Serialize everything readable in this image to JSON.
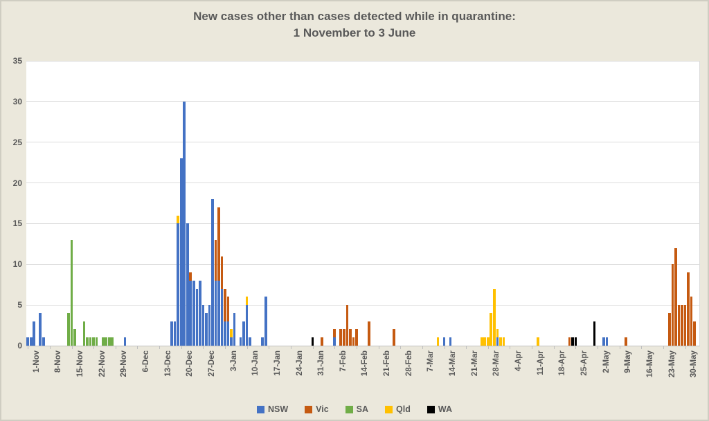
{
  "title": {
    "line1": "New cases other than cases detected while in quarantine:",
    "line2": "1 November to 3 June"
  },
  "colors": {
    "NSW": "#4472c4",
    "Vic": "#c55a11",
    "SA": "#70ad47",
    "Qld": "#ffc000",
    "WA": "#000000",
    "background": "#ebe8dc",
    "plot_background": "#ffffff",
    "gridline": "#dcdcdc",
    "axis_text": "#595959"
  },
  "chart_data": {
    "type": "bar",
    "stacked": true,
    "title": "New cases other than cases detected while in quarantine: 1 November to 3 June",
    "xlabel": "",
    "ylabel": "",
    "ylim": [
      0,
      35
    ],
    "yticks": [
      0,
      5,
      10,
      15,
      20,
      25,
      30,
      35
    ],
    "grid": true,
    "legend_position": "bottom",
    "series_names": [
      "NSW",
      "Vic",
      "SA",
      "Qld",
      "WA"
    ],
    "x_axis": {
      "start": "1-Nov",
      "end": "3-Jun",
      "total_days": 215,
      "tick_interval_days": 7
    },
    "xticks": [
      {
        "label": "1-Nov",
        "day": 0
      },
      {
        "label": "8-Nov",
        "day": 7
      },
      {
        "label": "15-Nov",
        "day": 14
      },
      {
        "label": "22-Nov",
        "day": 21
      },
      {
        "label": "29-Nov",
        "day": 28
      },
      {
        "label": "6-Dec",
        "day": 35
      },
      {
        "label": "13-Dec",
        "day": 42
      },
      {
        "label": "20-Dec",
        "day": 49
      },
      {
        "label": "27-Dec",
        "day": 56
      },
      {
        "label": "3-Jan",
        "day": 63
      },
      {
        "label": "10-Jan",
        "day": 70
      },
      {
        "label": "17-Jan",
        "day": 77
      },
      {
        "label": "24-Jan",
        "day": 84
      },
      {
        "label": "31-Jan",
        "day": 91
      },
      {
        "label": "7-Feb",
        "day": 98
      },
      {
        "label": "14-Feb",
        "day": 105
      },
      {
        "label": "21-Feb",
        "day": 112
      },
      {
        "label": "28-Feb",
        "day": 119
      },
      {
        "label": "7-Mar",
        "day": 126
      },
      {
        "label": "14-Mar",
        "day": 133
      },
      {
        "label": "21-Mar",
        "day": 140
      },
      {
        "label": "28-Mar",
        "day": 147
      },
      {
        "label": "4-Apr",
        "day": 154
      },
      {
        "label": "11-Apr",
        "day": 161
      },
      {
        "label": "18-Apr",
        "day": 168
      },
      {
        "label": "25-Apr",
        "day": 175
      },
      {
        "label": "2-May",
        "day": 182
      },
      {
        "label": "9-May",
        "day": 189
      },
      {
        "label": "16-May",
        "day": 196
      },
      {
        "label": "23-May",
        "day": 203
      },
      {
        "label": "30-May",
        "day": 210
      }
    ],
    "bars": [
      {
        "day": 0,
        "date": "1-Nov",
        "values": {
          "NSW": 1
        }
      },
      {
        "day": 1,
        "date": "2-Nov",
        "values": {
          "NSW": 1
        }
      },
      {
        "day": 2,
        "date": "3-Nov",
        "values": {
          "NSW": 3
        }
      },
      {
        "day": 4,
        "date": "5-Nov",
        "values": {
          "NSW": 4
        }
      },
      {
        "day": 5,
        "date": "6-Nov",
        "values": {
          "NSW": 1
        }
      },
      {
        "day": 13,
        "date": "14-Nov",
        "values": {
          "SA": 4
        }
      },
      {
        "day": 14,
        "date": "15-Nov",
        "values": {
          "SA": 13
        }
      },
      {
        "day": 15,
        "date": "16-Nov",
        "values": {
          "SA": 2
        }
      },
      {
        "day": 18,
        "date": "19-Nov",
        "values": {
          "SA": 3
        }
      },
      {
        "day": 19,
        "date": "20-Nov",
        "values": {
          "SA": 1
        }
      },
      {
        "day": 20,
        "date": "21-Nov",
        "values": {
          "SA": 1
        }
      },
      {
        "day": 21,
        "date": "22-Nov",
        "values": {
          "SA": 1
        }
      },
      {
        "day": 22,
        "date": "23-Nov",
        "values": {
          "SA": 1
        }
      },
      {
        "day": 24,
        "date": "25-Nov",
        "values": {
          "SA": 1
        }
      },
      {
        "day": 25,
        "date": "26-Nov",
        "values": {
          "SA": 1
        }
      },
      {
        "day": 26,
        "date": "27-Nov",
        "values": {
          "SA": 1
        }
      },
      {
        "day": 27,
        "date": "28-Nov",
        "values": {
          "SA": 1
        }
      },
      {
        "day": 31,
        "date": "2-Dec",
        "values": {
          "NSW": 1
        }
      },
      {
        "day": 46,
        "date": "17-Dec",
        "values": {
          "NSW": 3
        }
      },
      {
        "day": 47,
        "date": "18-Dec",
        "values": {
          "NSW": 3
        }
      },
      {
        "day": 48,
        "date": "19-Dec",
        "values": {
          "NSW": 15,
          "Qld": 1
        }
      },
      {
        "day": 49,
        "date": "20-Dec",
        "values": {
          "NSW": 23
        }
      },
      {
        "day": 50,
        "date": "21-Dec",
        "values": {
          "NSW": 30
        }
      },
      {
        "day": 51,
        "date": "22-Dec",
        "values": {
          "NSW": 15
        }
      },
      {
        "day": 52,
        "date": "23-Dec",
        "values": {
          "NSW": 8,
          "Vic": 1
        }
      },
      {
        "day": 53,
        "date": "24-Dec",
        "values": {
          "NSW": 8
        }
      },
      {
        "day": 54,
        "date": "25-Dec",
        "values": {
          "NSW": 7
        }
      },
      {
        "day": 55,
        "date": "26-Dec",
        "values": {
          "NSW": 8
        }
      },
      {
        "day": 56,
        "date": "27-Dec",
        "values": {
          "NSW": 5
        }
      },
      {
        "day": 57,
        "date": "28-Dec",
        "values": {
          "NSW": 4
        }
      },
      {
        "day": 58,
        "date": "29-Dec",
        "values": {
          "NSW": 5
        }
      },
      {
        "day": 59,
        "date": "30-Dec",
        "values": {
          "NSW": 18
        }
      },
      {
        "day": 60,
        "date": "31-Dec",
        "values": {
          "NSW": 8,
          "Vic": 5
        }
      },
      {
        "day": 61,
        "date": "1-Jan",
        "values": {
          "NSW": 8,
          "Vic": 9
        }
      },
      {
        "day": 62,
        "date": "2-Jan",
        "values": {
          "NSW": 7,
          "Vic": 4
        }
      },
      {
        "day": 63,
        "date": "3-Jan",
        "values": {
          "NSW": 3,
          "Vic": 4
        }
      },
      {
        "day": 64,
        "date": "4-Jan",
        "values": {
          "NSW": 3,
          "Vic": 3
        }
      },
      {
        "day": 65,
        "date": "5-Jan",
        "values": {
          "NSW": 1,
          "Qld": 1
        }
      },
      {
        "day": 66,
        "date": "6-Jan",
        "values": {
          "NSW": 4
        }
      },
      {
        "day": 68,
        "date": "8-Jan",
        "values": {
          "NSW": 1
        }
      },
      {
        "day": 69,
        "date": "9-Jan",
        "values": {
          "NSW": 3
        }
      },
      {
        "day": 70,
        "date": "10-Jan",
        "values": {
          "NSW": 5,
          "Qld": 1
        }
      },
      {
        "day": 71,
        "date": "11-Jan",
        "values": {
          "NSW": 1
        }
      },
      {
        "day": 75,
        "date": "15-Jan",
        "values": {
          "NSW": 1
        }
      },
      {
        "day": 76,
        "date": "16-Jan",
        "values": {
          "NSW": 6
        }
      },
      {
        "day": 91,
        "date": "31-Jan",
        "values": {
          "WA": 1
        }
      },
      {
        "day": 94,
        "date": "3-Feb",
        "values": {
          "Vic": 1
        }
      },
      {
        "day": 98,
        "date": "7-Feb",
        "values": {
          "NSW": 1,
          "Vic": 1
        }
      },
      {
        "day": 100,
        "date": "9-Feb",
        "values": {
          "Vic": 2
        }
      },
      {
        "day": 101,
        "date": "10-Feb",
        "values": {
          "Vic": 2
        }
      },
      {
        "day": 102,
        "date": "11-Feb",
        "values": {
          "Vic": 5
        }
      },
      {
        "day": 103,
        "date": "12-Feb",
        "values": {
          "Vic": 2
        }
      },
      {
        "day": 104,
        "date": "13-Feb",
        "values": {
          "Vic": 1
        }
      },
      {
        "day": 105,
        "date": "14-Feb",
        "values": {
          "Vic": 2
        }
      },
      {
        "day": 109,
        "date": "18-Feb",
        "values": {
          "Vic": 3
        }
      },
      {
        "day": 117,
        "date": "26-Feb",
        "values": {
          "Vic": 2
        }
      },
      {
        "day": 131,
        "date": "12-Mar",
        "values": {
          "Qld": 1
        }
      },
      {
        "day": 133,
        "date": "14-Mar",
        "values": {
          "NSW": 1
        }
      },
      {
        "day": 135,
        "date": "16-Mar",
        "values": {
          "NSW": 1
        }
      },
      {
        "day": 145,
        "date": "26-Mar",
        "values": {
          "Qld": 1
        }
      },
      {
        "day": 146,
        "date": "27-Mar",
        "values": {
          "Qld": 1
        }
      },
      {
        "day": 147,
        "date": "28-Mar",
        "values": {
          "Qld": 1
        }
      },
      {
        "day": 148,
        "date": "29-Mar",
        "values": {
          "Qld": 4
        }
      },
      {
        "day": 149,
        "date": "30-Mar",
        "values": {
          "Qld": 7
        }
      },
      {
        "day": 150,
        "date": "31-Mar",
        "values": {
          "NSW": 1,
          "Qld": 1
        }
      },
      {
        "day": 151,
        "date": "1-Apr",
        "values": {
          "Qld": 1
        }
      },
      {
        "day": 152,
        "date": "2-Apr",
        "values": {
          "Qld": 1
        }
      },
      {
        "day": 163,
        "date": "13-Apr",
        "values": {
          "Qld": 1
        }
      },
      {
        "day": 173,
        "date": "23-Apr",
        "values": {
          "Vic": 1
        }
      },
      {
        "day": 174,
        "date": "24-Apr",
        "values": {
          "WA": 1
        }
      },
      {
        "day": 175,
        "date": "25-Apr",
        "values": {
          "WA": 1
        }
      },
      {
        "day": 181,
        "date": "1-May",
        "values": {
          "WA": 3
        }
      },
      {
        "day": 184,
        "date": "4-May",
        "values": {
          "NSW": 1
        }
      },
      {
        "day": 185,
        "date": "5-May",
        "values": {
          "NSW": 1
        }
      },
      {
        "day": 191,
        "date": "11-May",
        "values": {
          "Vic": 1
        }
      },
      {
        "day": 205,
        "date": "25-May",
        "values": {
          "Vic": 4
        }
      },
      {
        "day": 206,
        "date": "26-May",
        "values": {
          "Vic": 10
        }
      },
      {
        "day": 207,
        "date": "27-May",
        "values": {
          "Vic": 12
        }
      },
      {
        "day": 208,
        "date": "28-May",
        "values": {
          "Vic": 5
        }
      },
      {
        "day": 209,
        "date": "29-May",
        "values": {
          "Vic": 5
        }
      },
      {
        "day": 210,
        "date": "30-May",
        "values": {
          "Vic": 5
        }
      },
      {
        "day": 211,
        "date": "31-May",
        "values": {
          "Vic": 9
        }
      },
      {
        "day": 212,
        "date": "1-Jun",
        "values": {
          "Vic": 6
        }
      },
      {
        "day": 213,
        "date": "2-Jun",
        "values": {
          "Vic": 3
        }
      }
    ]
  },
  "legend": {
    "items": [
      "NSW",
      "Vic",
      "SA",
      "Qld",
      "WA"
    ]
  }
}
